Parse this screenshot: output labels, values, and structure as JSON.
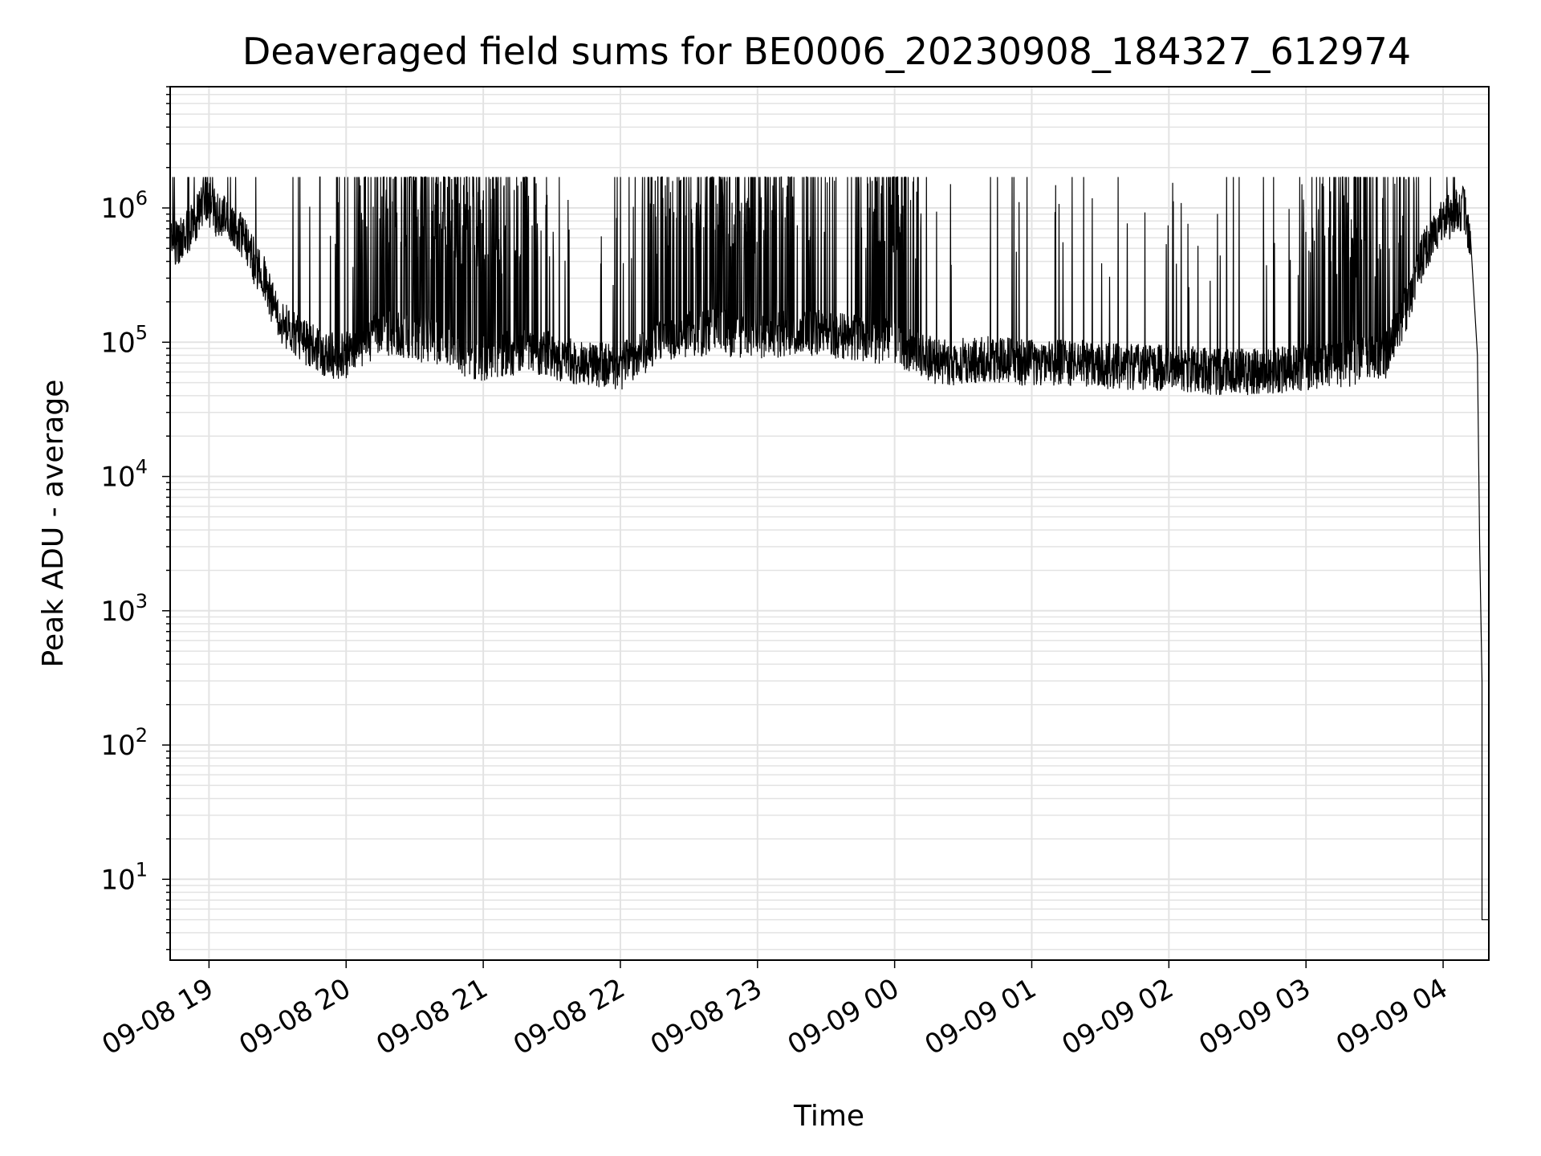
{
  "chart_data": {
    "type": "line",
    "title": "Deaveraged field sums for BE0006_20230908_184327_612974",
    "xlabel": "Time",
    "ylabel": "Peak ADU - average",
    "yscale": "log",
    "xlim": [
      "2023-09-08T18:43",
      "2023-09-09T04:20"
    ],
    "ylim": [
      2.5,
      8000000
    ],
    "grid": true,
    "line_color": "#000000",
    "grid_color": "#e3e3e3",
    "x_ticks": [
      {
        "t": "2023-09-08T19:00",
        "label": "09-08 19"
      },
      {
        "t": "2023-09-08T20:00",
        "label": "09-08 20"
      },
      {
        "t": "2023-09-08T21:00",
        "label": "09-08 21"
      },
      {
        "t": "2023-09-08T22:00",
        "label": "09-08 22"
      },
      {
        "t": "2023-09-08T23:00",
        "label": "09-08 23"
      },
      {
        "t": "2023-09-09T00:00",
        "label": "09-09 00"
      },
      {
        "t": "2023-09-09T01:00",
        "label": "09-09 01"
      },
      {
        "t": "2023-09-09T02:00",
        "label": "09-09 02"
      },
      {
        "t": "2023-09-09T03:00",
        "label": "09-09 03"
      },
      {
        "t": "2023-09-09T04:00",
        "label": "09-09 04"
      }
    ],
    "y_ticks": [
      {
        "value": 10,
        "base": "10",
        "exp": "1"
      },
      {
        "value": 100,
        "base": "10",
        "exp": "2"
      },
      {
        "value": 1000,
        "base": "10",
        "exp": "3"
      },
      {
        "value": 10000,
        "base": "10",
        "exp": "4"
      },
      {
        "value": 100000,
        "base": "10",
        "exp": "5"
      },
      {
        "value": 1000000,
        "base": "10",
        "exp": "6"
      }
    ],
    "series": [
      {
        "x": [
          "2023-09-08T18:43",
          "2023-09-08T18:46",
          "2023-09-08T18:50",
          "2023-09-08T18:54",
          "2023-09-08T18:58",
          "2023-09-08T19:03",
          "2023-09-08T19:08",
          "2023-09-08T19:13",
          "2023-09-08T19:18",
          "2023-09-08T19:24",
          "2023-09-08T19:30",
          "2023-09-08T19:36",
          "2023-09-08T19:42",
          "2023-09-08T19:50",
          "2023-09-08T20:00",
          "2023-09-08T20:15",
          "2023-09-08T20:30",
          "2023-09-08T20:45",
          "2023-09-08T21:00",
          "2023-09-08T21:20",
          "2023-09-08T21:40",
          "2023-09-08T22:00",
          "2023-09-08T22:20",
          "2023-09-08T22:40",
          "2023-09-08T23:00",
          "2023-09-08T23:20",
          "2023-09-08T23:40",
          "2023-09-09T00:00",
          "2023-09-09T00:20",
          "2023-09-09T00:40",
          "2023-09-09T01:00",
          "2023-09-09T01:20",
          "2023-09-09T01:40",
          "2023-09-09T02:00",
          "2023-09-09T02:20",
          "2023-09-09T02:40",
          "2023-09-09T03:00",
          "2023-09-09T03:20",
          "2023-09-09T03:35",
          "2023-09-09T03:45",
          "2023-09-09T03:52",
          "2023-09-09T04:00",
          "2023-09-09T04:05",
          "2023-09-09T04:09",
          "2023-09-09T04:12",
          "2023-09-09T04:15",
          "2023-09-09T04:16",
          "2023-09-09T04:17",
          "2023-09-09T04:17",
          "2023-09-09T04:20"
        ],
        "y": [
          600000,
          550000,
          650000,
          800000,
          1200000,
          900000,
          800000,
          700000,
          450000,
          300000,
          150000,
          120000,
          100000,
          80000,
          80000,
          120000,
          110000,
          90000,
          75000,
          90000,
          70000,
          65000,
          110000,
          120000,
          110000,
          120000,
          110000,
          100000,
          70000,
          75000,
          70000,
          70000,
          65000,
          65000,
          60000,
          60000,
          65000,
          70000,
          80000,
          200000,
          500000,
          800000,
          900000,
          1000000,
          600000,
          80000,
          3000,
          300,
          5,
          5
        ]
      }
    ]
  }
}
